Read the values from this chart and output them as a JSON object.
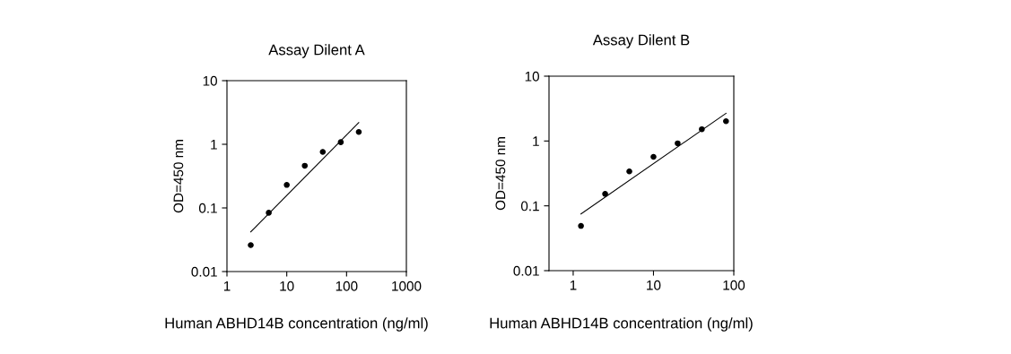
{
  "chart_data": [
    {
      "type": "scatter",
      "title": "Assay Dilent A",
      "xlabel": "Human ABHD14B concentration (ng/ml)",
      "ylabel": "OD=450 nm",
      "log": "xy",
      "xlim": [
        1,
        1000
      ],
      "xticks": [
        1,
        10,
        100,
        1000
      ],
      "ylim": [
        0.01,
        10
      ],
      "yticks": [
        0.01,
        0.1,
        1,
        10
      ],
      "grid": false,
      "series": [
        {
          "color": "#000000",
          "marker": "circle",
          "x": [
            2.5,
            5,
            10,
            20,
            40,
            80,
            160
          ],
          "values": [
            0.026,
            0.084,
            0.23,
            0.46,
            0.76,
            1.08,
            1.56
          ]
        },
        {
          "type": "line",
          "marker": "none",
          "color": "#000000",
          "x": [
            2.5,
            160
          ],
          "values": [
            0.042,
            2.2
          ]
        }
      ]
    },
    {
      "type": "scatter",
      "title": "Assay Dilent B",
      "xlabel": "Human ABHD14B concentration (ng/ml)",
      "ylabel": "OD=450 nm",
      "log": "xy",
      "xlim": [
        0.5,
        100
      ],
      "xticks": [
        1,
        10,
        100
      ],
      "ylim": [
        0.01,
        10
      ],
      "yticks": [
        0.01,
        0.1,
        1,
        10
      ],
      "grid": false,
      "series": [
        {
          "color": "#000000",
          "marker": "circle",
          "x": [
            1.25,
            2.5,
            5,
            10,
            20,
            40,
            80
          ],
          "values": [
            0.049,
            0.153,
            0.34,
            0.57,
            0.92,
            1.52,
            2.02
          ]
        },
        {
          "type": "line",
          "marker": "none",
          "color": "#000000",
          "x": [
            1.25,
            80
          ],
          "values": [
            0.075,
            2.67
          ]
        }
      ]
    }
  ]
}
